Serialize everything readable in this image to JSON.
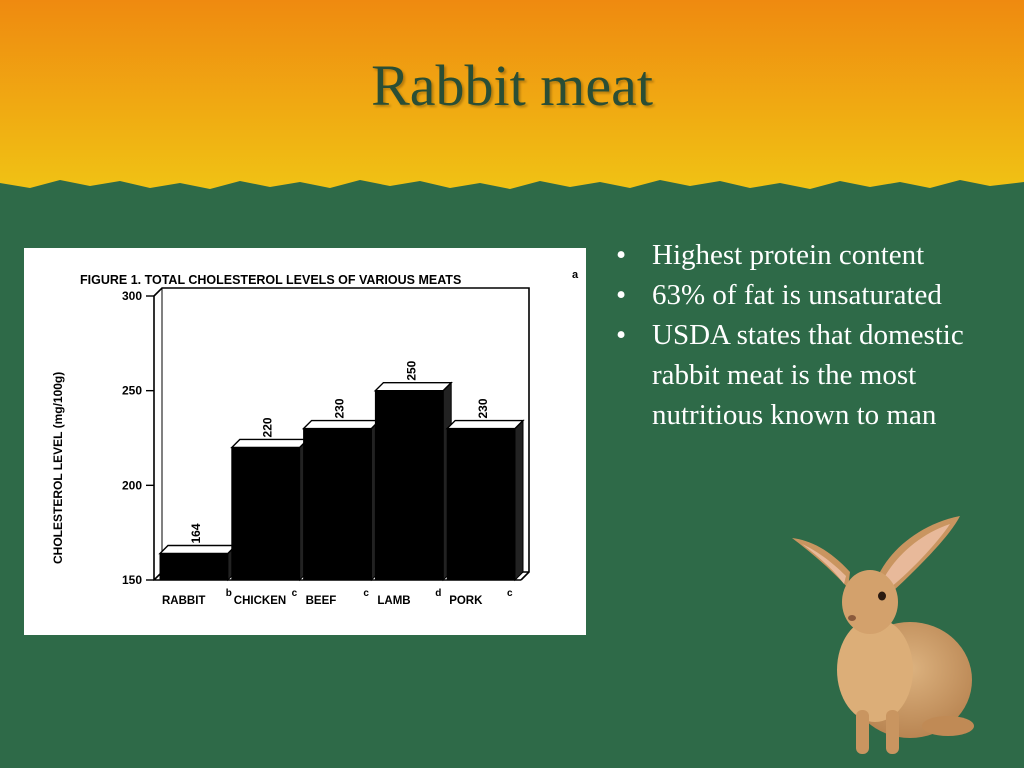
{
  "slide": {
    "title": "Rabbit meat",
    "bullets": [
      "Highest protein content",
      "63% of fat is unsaturated",
      "USDA states that domestic rabbit meat is the most nutritious known to man"
    ],
    "bullet_glyph": "•",
    "colors": {
      "background": "#2e6a48",
      "title_band_top": "#ef8a10",
      "title_band_bottom": "#f0c214",
      "title_text": "#2a4e35",
      "bullet_text": "#ffffff"
    },
    "images": [
      "rabbit-photo"
    ]
  },
  "chart_data": {
    "type": "bar",
    "title": "FIGURE 1. TOTAL CHOLESTEROL LEVELS OF VARIOUS MEATS",
    "title_superscript": "a",
    "ylabel": "CHOLESTEROL LEVEL (mg/100g)",
    "xlabel": "",
    "categories": [
      "RABBIT",
      "CHICKEN",
      "BEEF",
      "LAMB",
      "PORK"
    ],
    "category_superscripts": [
      "b",
      "c",
      "c",
      "d",
      "c"
    ],
    "values": [
      164,
      220,
      230,
      250,
      230
    ],
    "data_labels": [
      "164",
      "220",
      "230",
      "250",
      "230"
    ],
    "ylim": [
      150,
      300
    ],
    "yticks": [
      150,
      200,
      250,
      300
    ],
    "ytick_labels": [
      "150",
      "200",
      "250",
      "300"
    ],
    "grid": false,
    "style": "3d",
    "bar_color": "#000000"
  }
}
